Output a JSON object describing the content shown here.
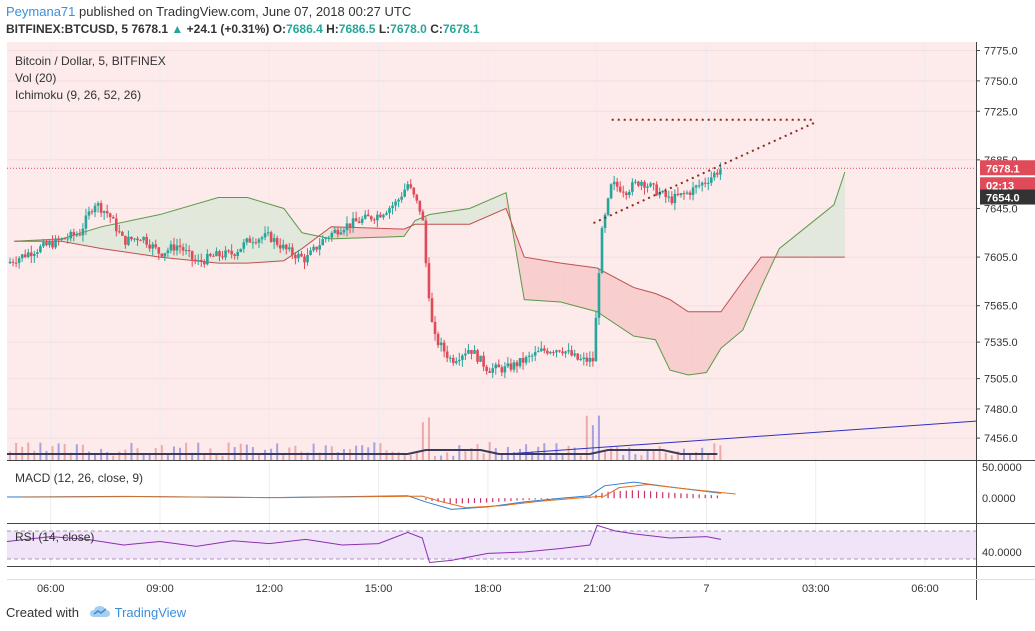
{
  "header": {
    "author": "Peymana71",
    "published_text": "published on TradingView.com, June 07, 2018 00:27 UTC",
    "symbol": "BITFINEX:BTCUSD, 5",
    "last": "7678.1",
    "change": "+24.1 (+0.31%)",
    "o_label": "O:",
    "o": "7686.4",
    "h_label": "H:",
    "h": "7686.5",
    "l_label": "L:",
    "l": "7678.0",
    "c_label": "C:",
    "c": "7678.1"
  },
  "legend": {
    "title": "Bitcoin / Dollar, 5, BITFINEX",
    "vol": "Vol (20)",
    "ichimoku": "Ichimoku (9, 26, 52, 26)",
    "macd": "MACD (12, 26, close, 9)",
    "rsi": "RSI (14, close)"
  },
  "badges": {
    "price": "7678.1",
    "timer": "02:13",
    "kijun": "7654.0"
  },
  "footer": {
    "created_with": "Created with",
    "brand": "TradingView"
  },
  "colors": {
    "up": "#26a69a",
    "down": "#e04b5a",
    "bg": "#fdeaea",
    "cloud_bear": "#f8c9c9",
    "cloud_bull": "#dde8d8",
    "rsi_band": "#f0e4f8",
    "trendline": "#8b2a1a",
    "volume_ma": "#3a3a5a",
    "blue_line": "#3030c0"
  },
  "chart_data": {
    "type": "candlestick",
    "title": "Bitcoin / Dollar, 5, BITFINEX",
    "price_ticks": [
      7775.0,
      7750.0,
      7725.0,
      7685.0,
      7645.0,
      7605.0,
      7565.0,
      7535.0,
      7505.0,
      7480.0,
      7456.0
    ],
    "price_range": [
      7438,
      7782
    ],
    "time_ticks": [
      "06:00",
      "09:00",
      "12:00",
      "15:00",
      "18:00",
      "21:00",
      "7",
      "03:00",
      "06:00"
    ],
    "time_tick_hours": [
      6,
      9,
      12,
      15,
      18,
      21,
      24,
      27,
      30
    ],
    "time_range_hours": [
      4.8,
      31.4
    ],
    "last_price": 7678.1,
    "price_path": [
      [
        4.8,
        7600
      ],
      [
        5.5,
        7610
      ],
      [
        6.2,
        7618
      ],
      [
        6.8,
        7625
      ],
      [
        7.2,
        7650
      ],
      [
        7.6,
        7640
      ],
      [
        8.0,
        7618
      ],
      [
        8.5,
        7622
      ],
      [
        9.0,
        7608
      ],
      [
        9.5,
        7615
      ],
      [
        10.0,
        7600
      ],
      [
        10.5,
        7606
      ],
      [
        11.0,
        7608
      ],
      [
        11.5,
        7620
      ],
      [
        12.0,
        7622
      ],
      [
        12.5,
        7610
      ],
      [
        13.0,
        7603
      ],
      [
        13.5,
        7620
      ],
      [
        14.0,
        7630
      ],
      [
        14.5,
        7635
      ],
      [
        15.0,
        7640
      ],
      [
        15.5,
        7650
      ],
      [
        15.8,
        7665
      ],
      [
        16.2,
        7640
      ],
      [
        16.3,
        7600
      ],
      [
        16.5,
        7540
      ],
      [
        17.0,
        7520
      ],
      [
        17.5,
        7530
      ],
      [
        18.0,
        7513
      ],
      [
        18.5,
        7513
      ],
      [
        19.0,
        7520
      ],
      [
        19.5,
        7528
      ],
      [
        20.0,
        7530
      ],
      [
        20.5,
        7520
      ],
      [
        20.9,
        7520
      ],
      [
        21.1,
        7620
      ],
      [
        21.4,
        7665
      ],
      [
        21.8,
        7660
      ],
      [
        22.2,
        7668
      ],
      [
        22.6,
        7660
      ],
      [
        23.0,
        7652
      ],
      [
        23.5,
        7658
      ],
      [
        24.0,
        7668
      ],
      [
        24.4,
        7678
      ]
    ],
    "ichimoku_cloud": [
      {
        "hours": [
          5.0,
          6.3,
          7.4,
          9.0,
          10.6,
          11.4,
          12.4,
          12.9,
          13.7,
          15.7,
          16.0,
          16.4,
          17.5,
          18.5,
          19.0,
          20.0,
          21.0,
          22.0,
          22.6,
          23.0,
          23.5,
          24.0,
          24.4,
          25.0,
          25.5,
          26.0,
          27.5,
          27.8
        ],
        "span_a": [
          7618,
          7620,
          7630,
          7640,
          7654,
          7654,
          7645,
          7625,
          7620,
          7622,
          7635,
          7640,
          7645,
          7658,
          7570,
          7568,
          7560,
          7540,
          7537,
          7512,
          7508,
          7510,
          7530,
          7545,
          7580,
          7612,
          7648,
          7675
        ],
        "span_b": [
          7618,
          7618,
          7612,
          7605,
          7600,
          7600,
          7602,
          7612,
          7630,
          7628,
          7632,
          7632,
          7632,
          7645,
          7605,
          7600,
          7596,
          7580,
          7575,
          7570,
          7560,
          7560,
          7560,
          7585,
          7605,
          7605,
          7605,
          7605
        ]
      }
    ],
    "trendlines": [
      {
        "name": "resistance",
        "points": [
          [
            21.4,
            7718
          ],
          [
            27.0,
            7718
          ]
        ]
      },
      {
        "name": "support",
        "points": [
          [
            20.9,
            7633
          ],
          [
            27.0,
            7716
          ]
        ]
      }
    ],
    "macd": {
      "ticks": [
        50.0,
        0.0
      ],
      "range": [
        -40,
        60
      ]
    },
    "rsi": {
      "ticks": [
        40.0
      ],
      "range": [
        20,
        80
      ],
      "band": [
        30,
        70
      ]
    }
  }
}
